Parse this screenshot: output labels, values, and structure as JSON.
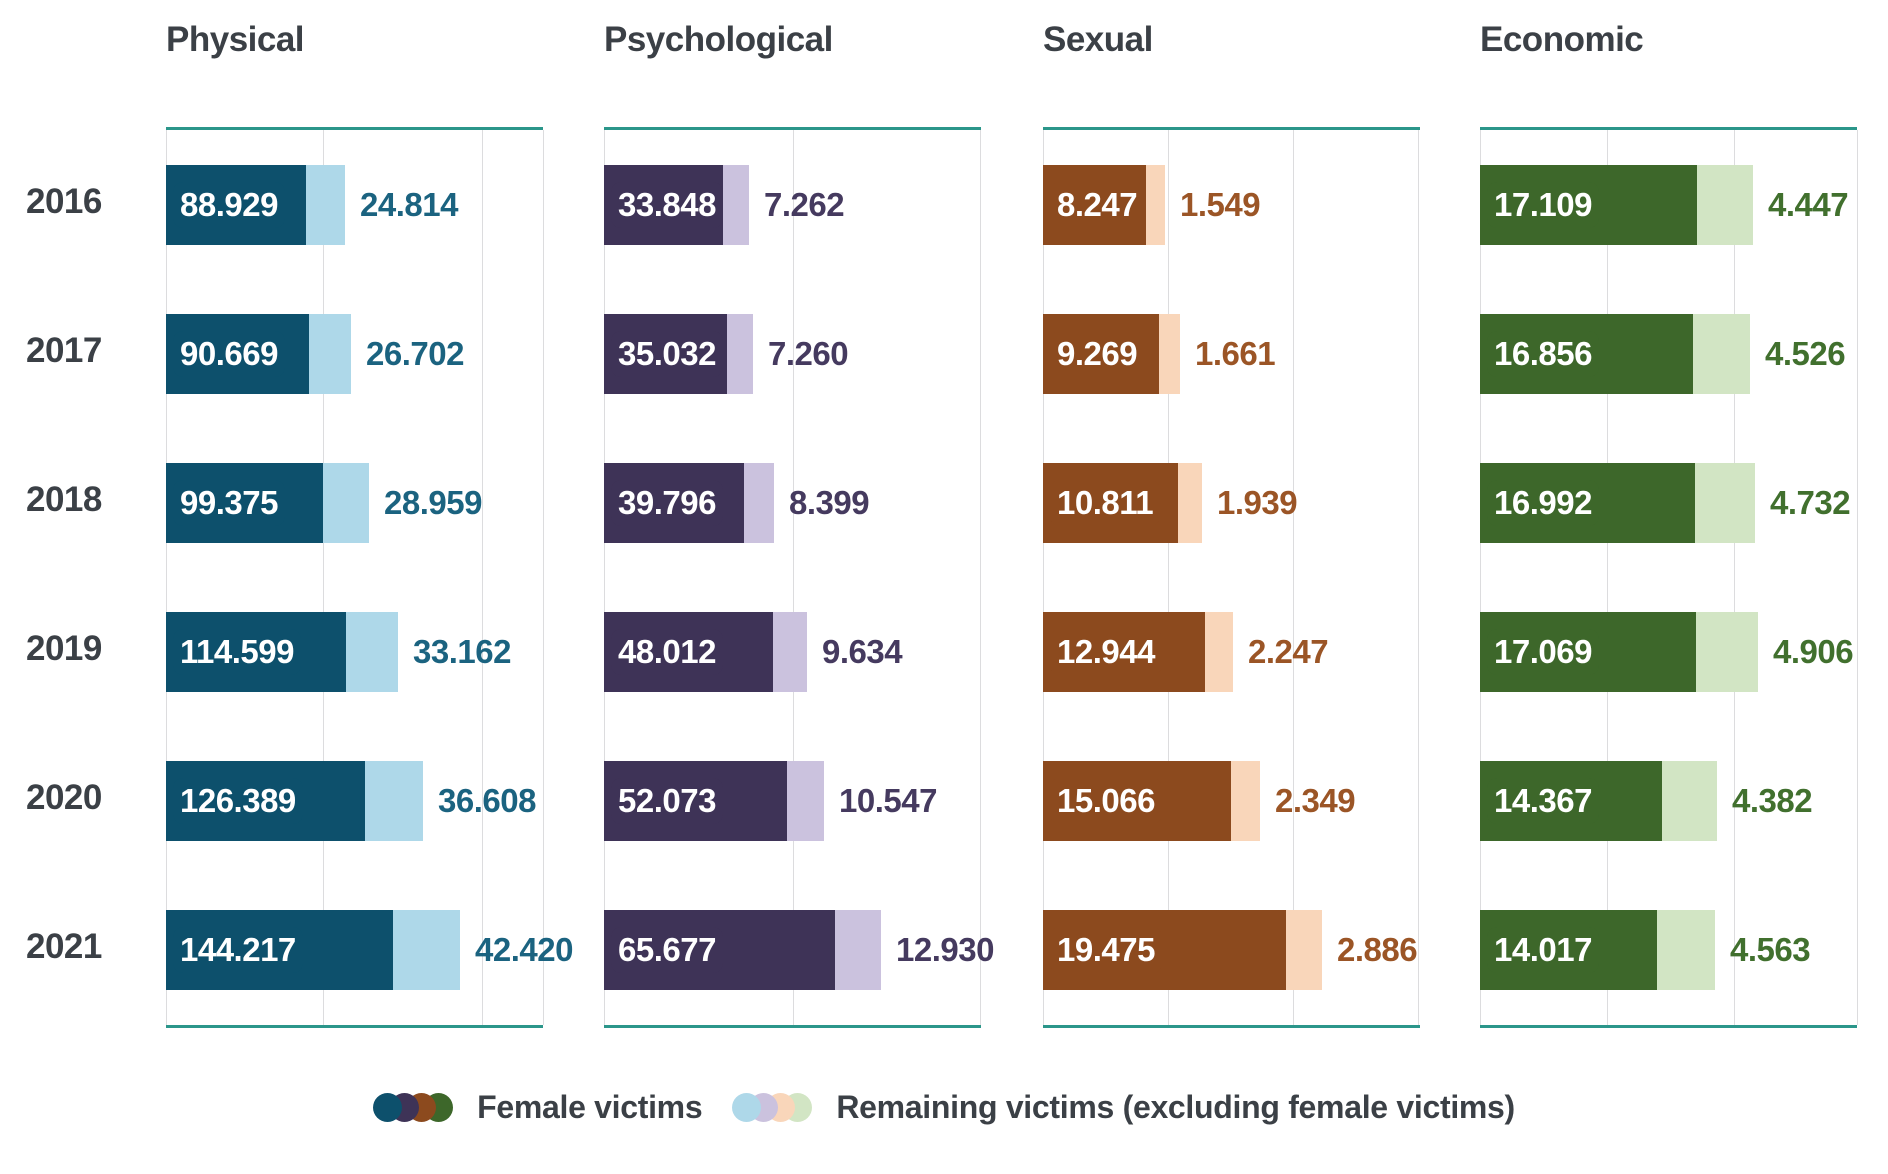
{
  "legend": {
    "female_label": "Female victims",
    "remaining_label": "Remaining victims (excluding female victims)",
    "female_colors": [
      "#0D506C",
      "#3E3357",
      "#8C4A1E",
      "#3D672A"
    ],
    "remaining_colors": [
      "#AED8E9",
      "#CBC2DE",
      "#F9D6BA",
      "#D2E5C4"
    ]
  },
  "years": [
    "2016",
    "2017",
    "2018",
    "2019",
    "2020",
    "2021"
  ],
  "style": {
    "teal_rule": "#2B968A",
    "gridline": "#DCDCDE",
    "text": "#3B4046",
    "background": "#FFFFFF"
  },
  "panels": [
    {
      "title": "Physical",
      "dark": "#0D506C",
      "light": "#AED8E9",
      "label_color": "#1B6380",
      "rows": [
        {
          "female": "88.929",
          "remaining": "24.814"
        },
        {
          "female": "90.669",
          "remaining": "26.702"
        },
        {
          "female": "99.375",
          "remaining": "28.959"
        },
        {
          "female": "114.599",
          "remaining": "33.162"
        },
        {
          "female": "126.389",
          "remaining": "36.608"
        },
        {
          "female": "144.217",
          "remaining": "42.420"
        }
      ]
    },
    {
      "title": "Psychological",
      "dark": "#3E3357",
      "light": "#CBC2DE",
      "label_color": "#453A5F",
      "rows": [
        {
          "female": "33.848",
          "remaining": "7.262"
        },
        {
          "female": "35.032",
          "remaining": "7.260"
        },
        {
          "female": "39.796",
          "remaining": "8.399"
        },
        {
          "female": "48.012",
          "remaining": "9.634"
        },
        {
          "female": "52.073",
          "remaining": "10.547"
        },
        {
          "female": "65.677",
          "remaining": "12.930"
        }
      ]
    },
    {
      "title": "Sexual",
      "dark": "#8C4A1E",
      "light": "#F9D6BA",
      "label_color": "#9B5526",
      "rows": [
        {
          "female": "8.247",
          "remaining": "1.549"
        },
        {
          "female": "9.269",
          "remaining": "1.661"
        },
        {
          "female": "10.811",
          "remaining": "1.939"
        },
        {
          "female": "12.944",
          "remaining": "2.247"
        },
        {
          "female": "15.066",
          "remaining": "2.349"
        },
        {
          "female": "19.475",
          "remaining": "2.886"
        }
      ]
    },
    {
      "title": "Economic",
      "dark": "#3D672A",
      "light": "#D2E5C4",
      "label_color": "#41702E",
      "rows": [
        {
          "female": "17.109",
          "remaining": "4.447"
        },
        {
          "female": "16.856",
          "remaining": "4.526"
        },
        {
          "female": "16.992",
          "remaining": "4.732"
        },
        {
          "female": "17.069",
          "remaining": "4.906"
        },
        {
          "female": "14.367",
          "remaining": "4.382"
        },
        {
          "female": "14.017",
          "remaining": "4.563"
        }
      ]
    }
  ],
  "chart_data": {
    "type": "bar",
    "orientation": "horizontal",
    "stacked": true,
    "grid": true,
    "legend_position": "bottom",
    "categories": [
      "2016",
      "2017",
      "2018",
      "2019",
      "2020",
      "2021"
    ],
    "panels": [
      {
        "title": "Physical",
        "axis_max": 240000,
        "series": [
          {
            "name": "Female victims",
            "values": [
              88929,
              90669,
              99375,
              114599,
              126389,
              144217
            ]
          },
          {
            "name": "Remaining victims (excluding female victims)",
            "values": [
              24814,
              26702,
              28959,
              33162,
              36608,
              42420
            ]
          }
        ]
      },
      {
        "title": "Psychological",
        "axis_max": 107000,
        "series": [
          {
            "name": "Female victims",
            "values": [
              33848,
              35032,
              39796,
              48012,
              52073,
              65677
            ]
          },
          {
            "name": "Remaining victims (excluding female victims)",
            "values": [
              7262,
              7260,
              8399,
              9634,
              10547,
              12930
            ]
          }
        ]
      },
      {
        "title": "Sexual",
        "axis_max": 30000,
        "series": [
          {
            "name": "Female victims",
            "values": [
              8247,
              9269,
              10811,
              12944,
              15066,
              19475
            ]
          },
          {
            "name": "Remaining victims (excluding female victims)",
            "values": [
              1549,
              1661,
              1939,
              2247,
              2349,
              2886
            ]
          }
        ]
      },
      {
        "title": "Economic",
        "axis_max": 29800,
        "series": [
          {
            "name": "Female victims",
            "values": [
              17109,
              16856,
              16992,
              17069,
              14367,
              14017
            ]
          },
          {
            "name": "Remaining victims (excluding female victims)",
            "values": [
              4447,
              4526,
              4732,
              4906,
              4382,
              4563
            ]
          }
        ]
      }
    ]
  }
}
